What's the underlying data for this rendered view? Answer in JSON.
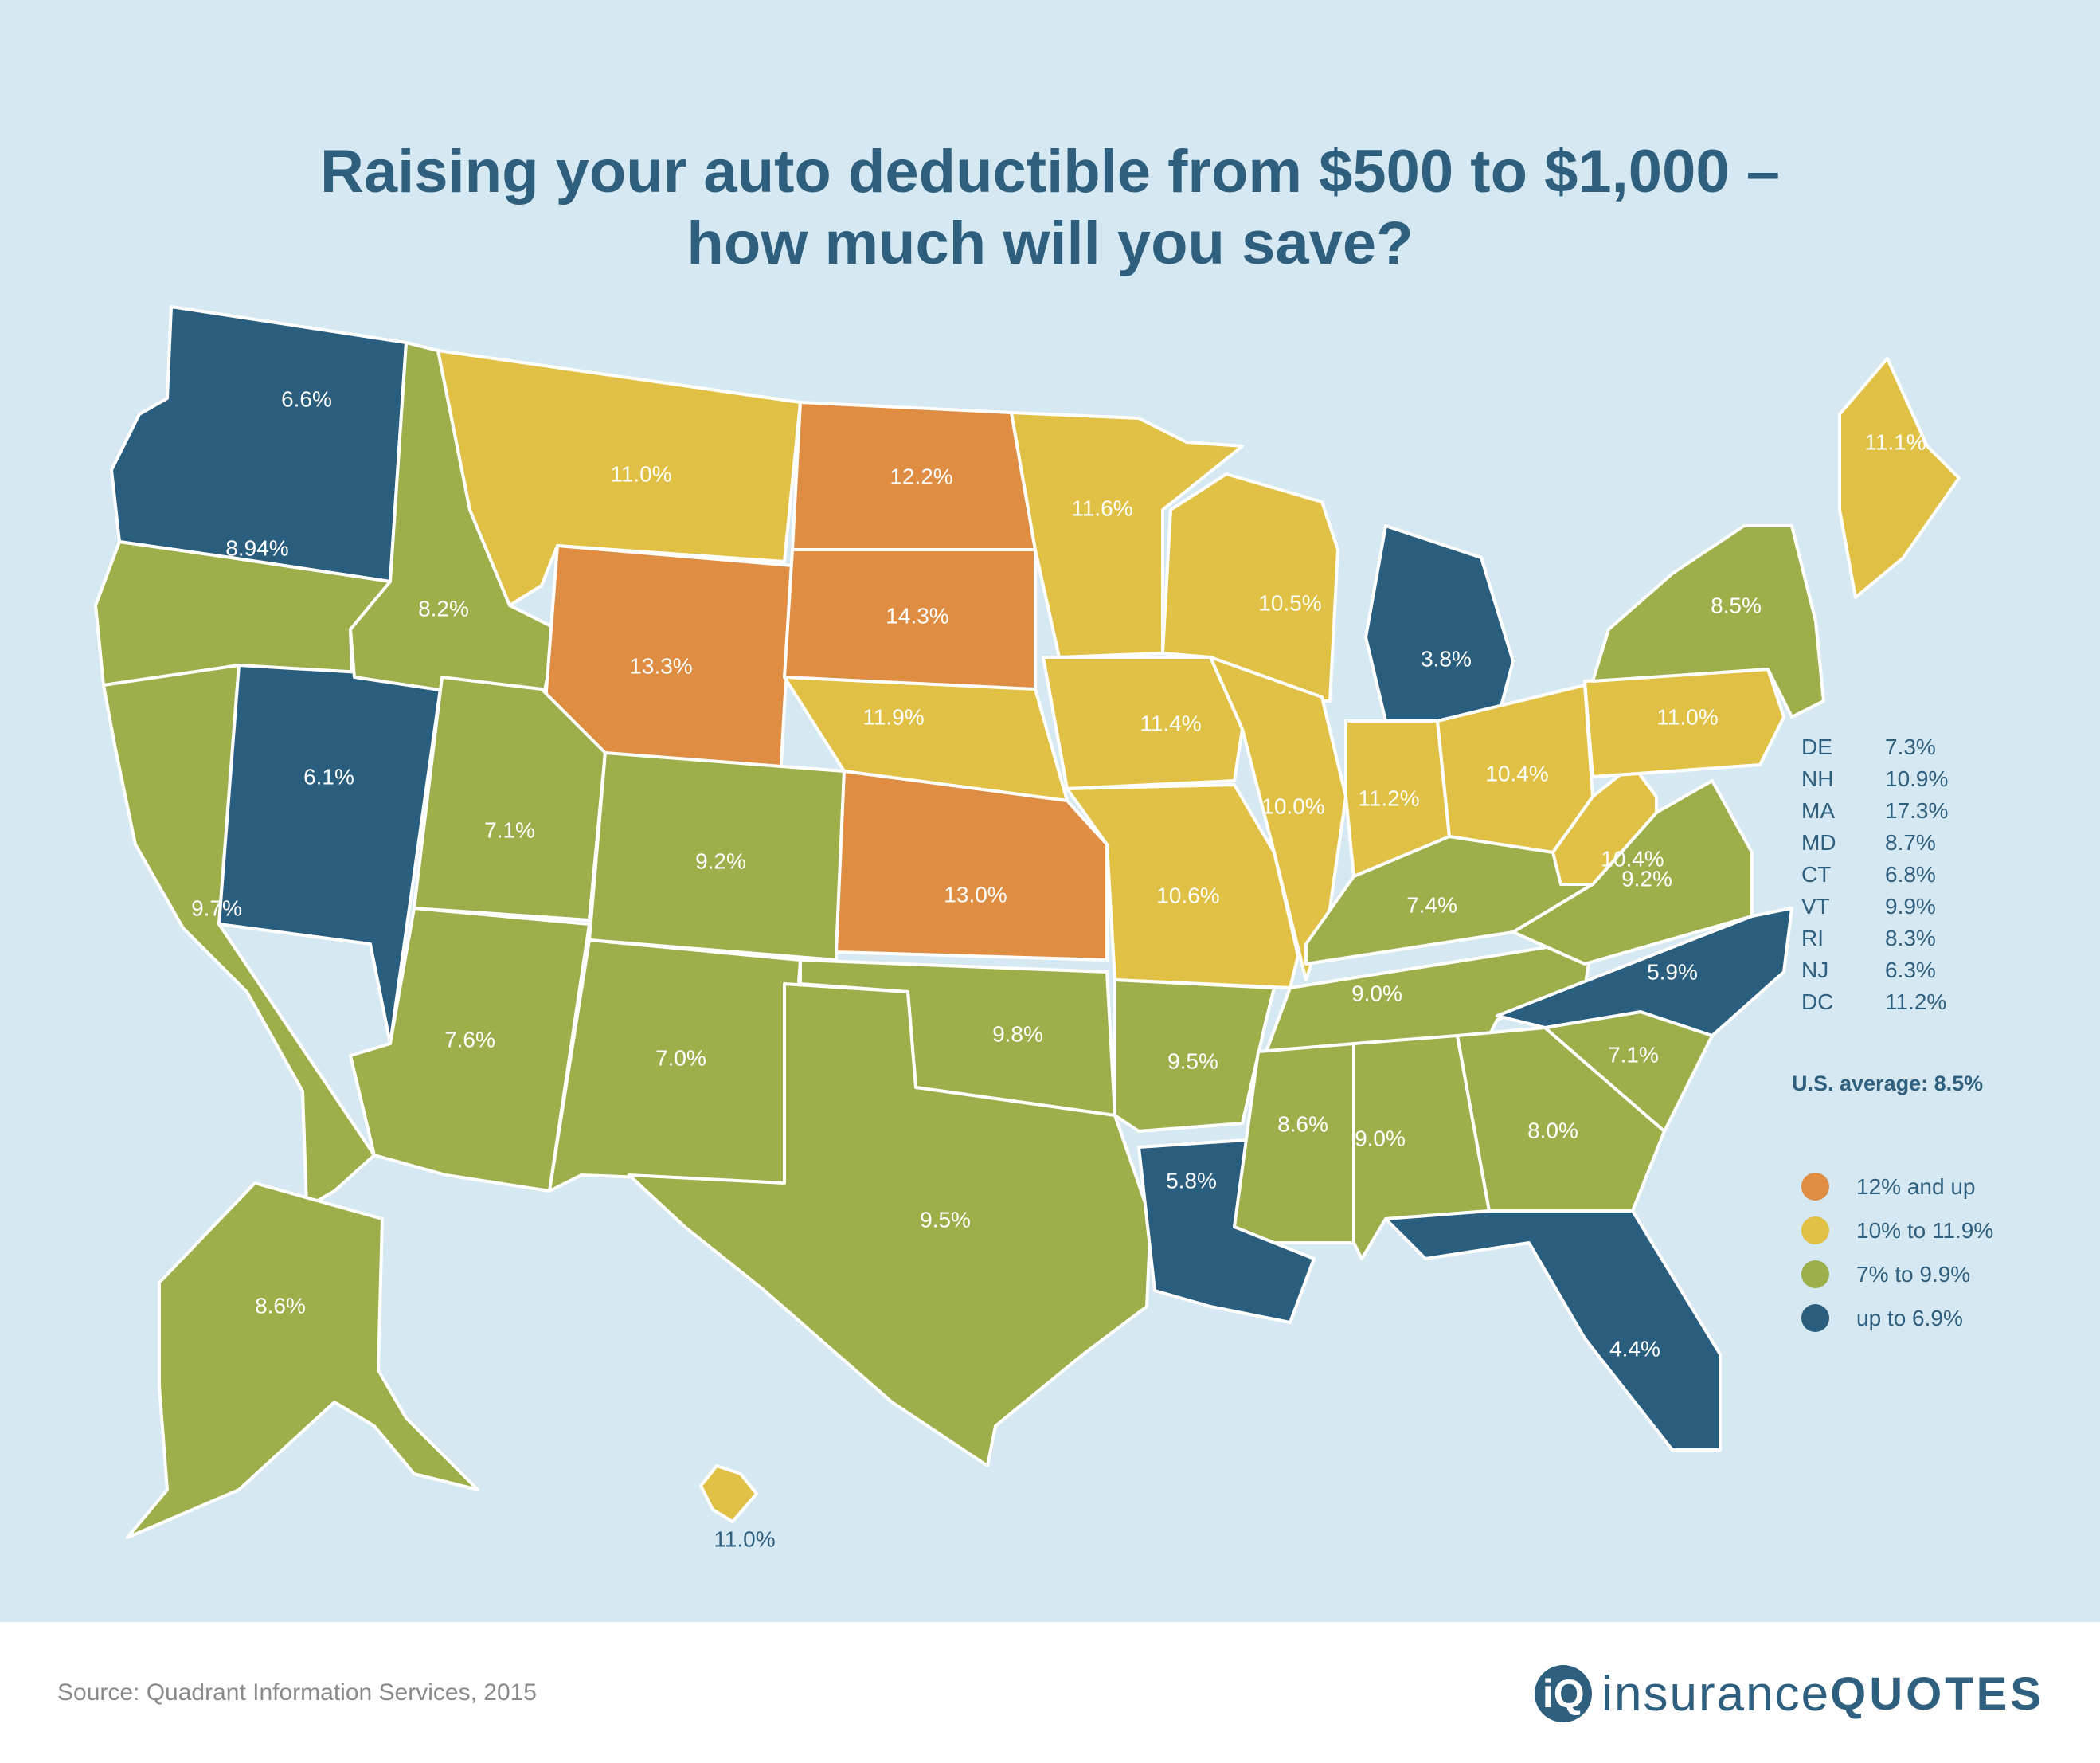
{
  "title": {
    "line1": "Raising your auto deductible from $500 to $1,000 –",
    "line2": "how much will you save?"
  },
  "colors": {
    "background": "#d6e8f1",
    "orange": "#de8d43",
    "yellow": "#e1c145",
    "green": "#9daf4b",
    "blue": "#2a5e7e",
    "text": "#2e5f7e"
  },
  "states": [
    {
      "code": "WA",
      "value": "6.6%",
      "band": "blue"
    },
    {
      "code": "OR",
      "value": "8.94%",
      "band": "green"
    },
    {
      "code": "CA",
      "value": "9.7%",
      "band": "green"
    },
    {
      "code": "NV",
      "value": "6.1%",
      "band": "blue"
    },
    {
      "code": "ID",
      "value": "8.2%",
      "band": "green"
    },
    {
      "code": "MT",
      "value": "11.0%",
      "band": "yellow"
    },
    {
      "code": "WY",
      "value": "13.3%",
      "band": "orange"
    },
    {
      "code": "UT",
      "value": "7.1%",
      "band": "green"
    },
    {
      "code": "AZ",
      "value": "7.6%",
      "band": "green"
    },
    {
      "code": "CO",
      "value": "9.2%",
      "band": "green"
    },
    {
      "code": "NM",
      "value": "7.0%",
      "band": "green"
    },
    {
      "code": "ND",
      "value": "12.2%",
      "band": "orange"
    },
    {
      "code": "SD",
      "value": "14.3%",
      "band": "orange"
    },
    {
      "code": "NE",
      "value": "11.9%",
      "band": "yellow"
    },
    {
      "code": "KS",
      "value": "13.0%",
      "band": "orange"
    },
    {
      "code": "OK",
      "value": "9.8%",
      "band": "green"
    },
    {
      "code": "TX",
      "value": "9.5%",
      "band": "green"
    },
    {
      "code": "MN",
      "value": "11.6%",
      "band": "yellow"
    },
    {
      "code": "IA",
      "value": "11.4%",
      "band": "yellow"
    },
    {
      "code": "MO",
      "value": "10.6%",
      "band": "yellow"
    },
    {
      "code": "AR",
      "value": "9.5%",
      "band": "green"
    },
    {
      "code": "LA",
      "value": "5.8%",
      "band": "blue"
    },
    {
      "code": "WI",
      "value": "10.5%",
      "band": "yellow"
    },
    {
      "code": "IL",
      "value": "10.0%",
      "band": "yellow"
    },
    {
      "code": "MI",
      "value": "3.8%",
      "band": "blue"
    },
    {
      "code": "IN",
      "value": "11.2%",
      "band": "yellow"
    },
    {
      "code": "OH",
      "value": "10.4%",
      "band": "yellow"
    },
    {
      "code": "KY",
      "value": "7.4%",
      "band": "green"
    },
    {
      "code": "TN",
      "value": "9.0%",
      "band": "green"
    },
    {
      "code": "MS",
      "value": "8.6%",
      "band": "green"
    },
    {
      "code": "AL",
      "value": "9.0%",
      "band": "green"
    },
    {
      "code": "GA",
      "value": "8.0%",
      "band": "green"
    },
    {
      "code": "FL",
      "value": "4.4%",
      "band": "blue"
    },
    {
      "code": "SC",
      "value": "7.1%",
      "band": "green"
    },
    {
      "code": "NC",
      "value": "5.9%",
      "band": "blue"
    },
    {
      "code": "VA",
      "value": "9.2%",
      "band": "green"
    },
    {
      "code": "WV",
      "value": "10.4%",
      "band": "yellow"
    },
    {
      "code": "PA",
      "value": "11.0%",
      "band": "yellow"
    },
    {
      "code": "NY",
      "value": "8.5%",
      "band": "green"
    },
    {
      "code": "ME",
      "value": "11.1%",
      "band": "yellow"
    },
    {
      "code": "AK",
      "value": "8.6%",
      "band": "green"
    },
    {
      "code": "HI",
      "value": "11.0%",
      "band": "yellow"
    }
  ],
  "small_states": [
    {
      "code": "DE",
      "value": "7.3%"
    },
    {
      "code": "NH",
      "value": "10.9%"
    },
    {
      "code": "MA",
      "value": "17.3%"
    },
    {
      "code": "MD",
      "value": "8.7%"
    },
    {
      "code": "CT",
      "value": "6.8%"
    },
    {
      "code": "VT",
      "value": "9.9%"
    },
    {
      "code": "RI",
      "value": "8.3%"
    },
    {
      "code": "NJ",
      "value": "6.3%"
    },
    {
      "code": "DC",
      "value": "11.2%"
    }
  ],
  "average": "U.S. average: 8.5%",
  "legend": [
    {
      "label": "12% and up",
      "band": "orange"
    },
    {
      "label": "10% to 11.9%",
      "band": "yellow"
    },
    {
      "label": "7% to 9.9%",
      "band": "green"
    },
    {
      "label": "up to 6.9%",
      "band": "blue"
    }
  ],
  "footer": {
    "source": "Source: Quadrant Information Services, 2015",
    "logo_mark": "iQ",
    "logo_word1": "insurance",
    "logo_word2": "QUOTES"
  }
}
